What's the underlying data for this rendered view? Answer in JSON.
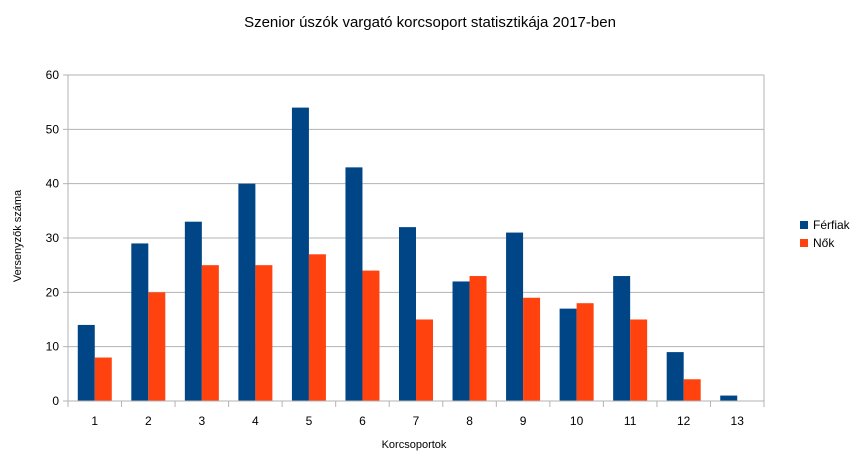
{
  "chart_data": {
    "type": "bar",
    "title": "Szenior úszók vargató korcsoport statisztikája 2017-ben",
    "xlabel": "Korcsoportok",
    "ylabel": "Versenyzők száma",
    "categories": [
      "1",
      "2",
      "3",
      "4",
      "5",
      "6",
      "7",
      "8",
      "9",
      "10",
      "11",
      "12",
      "13"
    ],
    "series": [
      {
        "name": "Férfiak",
        "color": "#004586",
        "values": [
          14,
          29,
          33,
          40,
          54,
          43,
          32,
          22,
          31,
          17,
          23,
          9,
          1
        ]
      },
      {
        "name": "Nők",
        "color": "#ff420e",
        "values": [
          8,
          20,
          25,
          25,
          27,
          24,
          15,
          23,
          19,
          18,
          15,
          4,
          0
        ]
      }
    ],
    "ylim": [
      0,
      60
    ],
    "yticks": [
      0,
      10,
      20,
      30,
      40,
      50,
      60
    ],
    "grid": true,
    "legend": "right"
  }
}
